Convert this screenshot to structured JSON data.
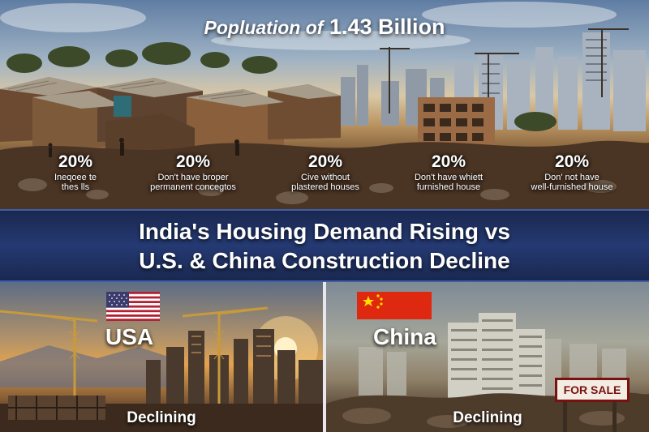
{
  "header": {
    "title_lead": "Popluation of",
    "title_number": "1.43 Billion"
  },
  "stats": [
    {
      "percent": "20%",
      "text": "Ineqoee te\nthes lls"
    },
    {
      "percent": "20%",
      "text": "Don't have broper\npermanent concegtos"
    },
    {
      "percent": "20%",
      "text": "Cive without\nplastered houses"
    },
    {
      "percent": "20%",
      "text": "Don't have whiett\nfurnished house"
    },
    {
      "percent": "20%",
      "text": "Don' not have\nwell-furnished house"
    }
  ],
  "headline": {
    "line1": "India's Housing Demand Rising vs",
    "line2": "U.S. & China Construction Decline"
  },
  "usa_panel": {
    "label": "USA",
    "status": "Declining",
    "flag_icon": "usa-flag-icon"
  },
  "china_panel": {
    "label": "China",
    "status": "Declining",
    "sign": "FOR SALE",
    "flag_icon": "china-flag-icon"
  },
  "colors": {
    "banner": "#253a73",
    "banner_border": "#3f5ea8",
    "sign_red": "#7a1111",
    "china_red": "#de2910",
    "usa_blue": "#3c3b6e",
    "usa_red": "#b22234"
  }
}
